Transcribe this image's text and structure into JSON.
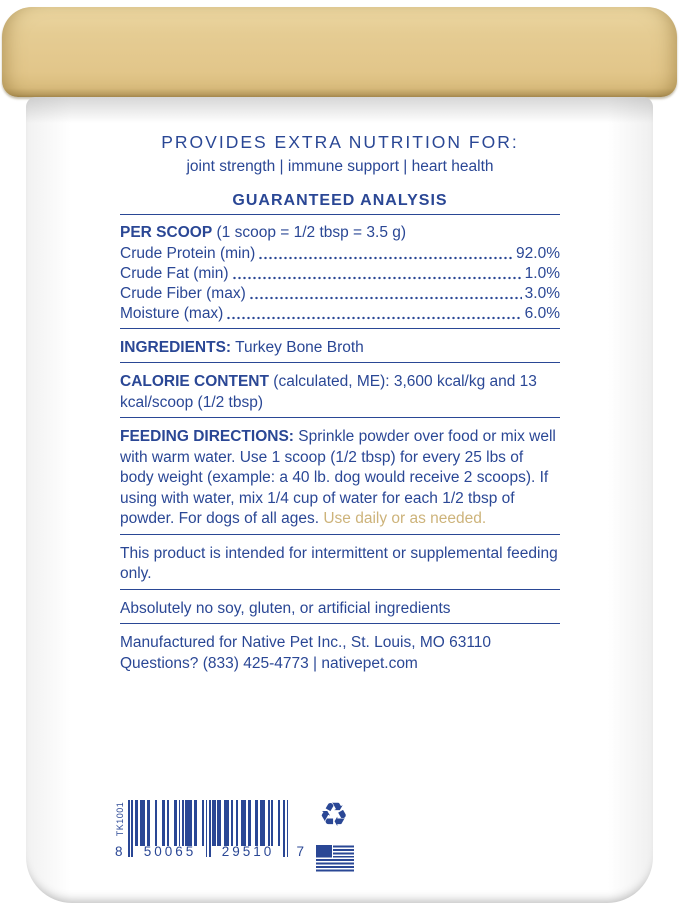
{
  "colors": {
    "blue": "#2a4795",
    "gold": "#e3c88d",
    "gold_text": "#cdb37a"
  },
  "header": {
    "title": "PROVIDES EXTRA NUTRITION FOR:",
    "subtitle": "joint strength | immune support | heart health",
    "section_title": "GUARANTEED ANALYSIS"
  },
  "analysis": {
    "per_scoop_label": "PER SCOOP",
    "per_scoop_detail": "(1 scoop = 1/2 tbsp = 3.5 g)",
    "rows": [
      {
        "label": "Crude Protein (min)",
        "value": "92.0%"
      },
      {
        "label": "Crude Fat (min)",
        "value": "1.0%"
      },
      {
        "label": "Crude Fiber (max)",
        "value": "3.0%"
      },
      {
        "label": "Moisture (max)",
        "value": "6.0%"
      }
    ]
  },
  "ingredients": {
    "label": "INGREDIENTS:",
    "value": "Turkey Bone Broth"
  },
  "calorie": {
    "label": "CALORIE CONTENT",
    "value": "(calculated, ME): 3,600 kcal/kg and 13 kcal/scoop (1/2 tbsp)"
  },
  "feeding": {
    "label": "FEEDING DIRECTIONS:",
    "body": "Sprinkle powder over food or mix well with warm water. Use 1 scoop (1/2 tbsp) for every 25 lbs of body weight (example: a 40 lb. dog would receive 2 scoops). If using with water, mix 1/4 cup of water for each 1/2 tbsp of powder. For dogs of all ages.",
    "highlight": " Use daily or as needed."
  },
  "notes": {
    "intermittent": "This product is intended for intermittent or supplemental feeding only.",
    "no_artificial": "Absolutely no soy, gluten, or artificial ingredients"
  },
  "manufacturer": {
    "line1": "Manufactured for Native Pet Inc., St. Louis, MO 63110",
    "line2": "Questions? (833) 425-4773 | nativepet.com"
  },
  "barcode": {
    "side_code": "TK1001",
    "digits": "850065295107",
    "display": {
      "first": "8",
      "left_group": "50065",
      "right_group": "29510",
      "last": "7"
    }
  },
  "icons": {
    "recycle_glyph": "♻"
  }
}
